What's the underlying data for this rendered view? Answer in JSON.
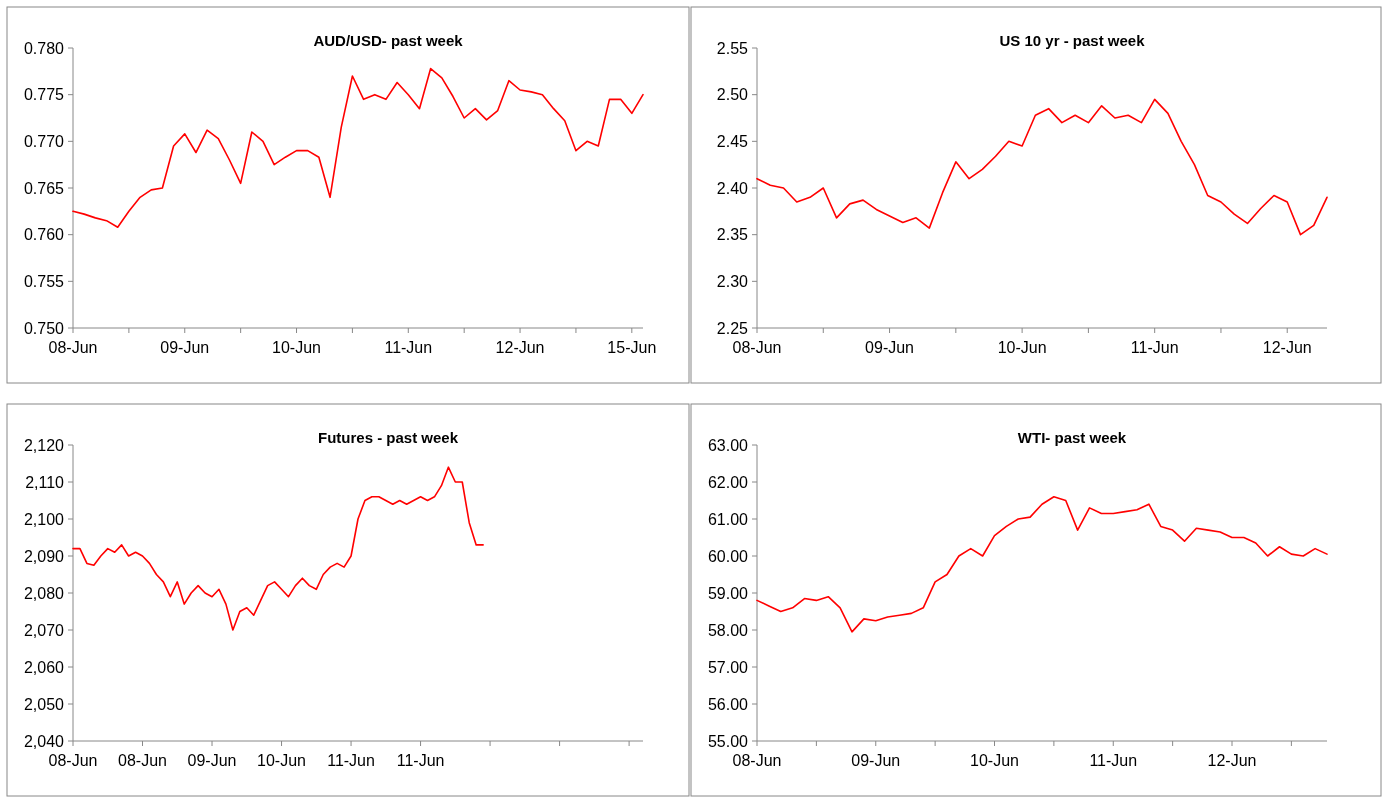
{
  "chart_data": [
    {
      "type": "line",
      "title": "AUD/USD- past week",
      "ylim": [
        0.75,
        0.78
      ],
      "yticks": [
        {
          "value": 0.75,
          "label": "0.750"
        },
        0.755,
        {
          "value": 0.76,
          "label": "0.760"
        },
        0.765,
        {
          "value": 0.77,
          "label": "0.770"
        },
        0.775,
        {
          "value": 0.78,
          "label": "0.780"
        }
      ],
      "categories": [
        "08-Jun",
        null,
        null,
        null,
        null,
        null,
        null,
        null,
        null,
        null,
        "09-Jun",
        null,
        null,
        null,
        null,
        null,
        null,
        null,
        null,
        null,
        "10-Jun",
        null,
        null,
        null,
        null,
        null,
        null,
        null,
        null,
        null,
        "11-Jun",
        null,
        null,
        null,
        null,
        null,
        null,
        null,
        null,
        null,
        "12-Jun",
        null,
        null,
        null,
        null,
        null,
        null,
        null,
        null,
        null,
        "15-Jun",
        null
      ],
      "series": [
        {
          "color": "#ff0000",
          "values": [
            0.7625,
            0.7622,
            0.7618,
            0.7615,
            0.7608,
            0.7625,
            0.764,
            0.7648,
            0.765,
            0.7695,
            0.7708,
            0.7688,
            0.7712,
            0.7703,
            0.768,
            0.7655,
            0.771,
            0.77,
            0.7675,
            0.7683,
            0.769,
            0.769,
            0.7683,
            0.764,
            0.7715,
            0.777,
            0.7745,
            0.775,
            0.7745,
            0.7763,
            0.775,
            0.7735,
            0.7778,
            0.7768,
            0.7748,
            0.7725,
            0.7735,
            0.7723,
            0.7733,
            0.7765,
            0.7755,
            0.7753,
            0.775,
            0.7735,
            0.7722,
            0.769,
            0.77,
            0.7695,
            0.7745,
            0.7745,
            0.773,
            0.775
          ]
        }
      ]
    },
    {
      "type": "line",
      "title": "US 10 yr - past week",
      "ylim": [
        2.25,
        2.55
      ],
      "yticks": [
        2.25,
        {
          "value": 2.3,
          "label": "2.30"
        },
        2.35,
        {
          "value": 2.4,
          "label": "2.40"
        },
        2.45,
        {
          "value": 2.5,
          "label": "2.50"
        },
        2.55
      ],
      "categories": [
        "08-Jun",
        null,
        null,
        null,
        null,
        null,
        null,
        null,
        null,
        null,
        "09-Jun",
        null,
        null,
        null,
        null,
        null,
        null,
        null,
        null,
        null,
        "10-Jun",
        null,
        null,
        null,
        null,
        null,
        null,
        null,
        null,
        null,
        "11-Jun",
        null,
        null,
        null,
        null,
        null,
        null,
        null,
        null,
        null,
        "12-Jun",
        null,
        null,
        null
      ],
      "series": [
        {
          "color": "#ff0000",
          "values": [
            2.41,
            2.403,
            2.4,
            2.385,
            2.39,
            2.4,
            2.368,
            2.383,
            2.387,
            2.377,
            2.37,
            2.363,
            2.368,
            2.357,
            2.395,
            2.428,
            2.41,
            2.42,
            2.434,
            2.45,
            2.445,
            2.478,
            2.485,
            2.47,
            2.478,
            2.47,
            2.488,
            2.475,
            2.478,
            2.47,
            2.495,
            2.48,
            2.45,
            2.425,
            2.392,
            2.385,
            2.372,
            2.362,
            2.378,
            2.392,
            2.385,
            2.35,
            2.36,
            2.39
          ]
        }
      ]
    },
    {
      "type": "line",
      "title": "Futures - past week",
      "ylim": [
        2040,
        2120
      ],
      "yticks": [
        {
          "value": 2040,
          "label": "2,040"
        },
        {
          "value": 2050,
          "label": "2,050"
        },
        {
          "value": 2060,
          "label": "2,060"
        },
        {
          "value": 2070,
          "label": "2,070"
        },
        {
          "value": 2080,
          "label": "2,080"
        },
        {
          "value": 2090,
          "label": "2,090"
        },
        {
          "value": 2100,
          "label": "2,100"
        },
        {
          "value": 2110,
          "label": "2,110"
        },
        {
          "value": 2120,
          "label": "2,120"
        }
      ],
      "categories": [
        "08-Jun",
        null,
        null,
        null,
        null,
        null,
        null,
        null,
        null,
        null,
        "08-Jun",
        null,
        null,
        null,
        null,
        null,
        null,
        null,
        null,
        null,
        "09-Jun",
        null,
        null,
        null,
        null,
        null,
        null,
        null,
        null,
        null,
        "10-Jun",
        null,
        null,
        null,
        null,
        null,
        null,
        null,
        null,
        null,
        "11-Jun",
        null,
        null,
        null,
        null,
        null,
        null,
        null,
        null,
        null,
        "11-Jun",
        null,
        null,
        null,
        null,
        null,
        null,
        null,
        null,
        null,
        null,
        null,
        null,
        null,
        null,
        null,
        null,
        null,
        null,
        null,
        null,
        null,
        null,
        null,
        null,
        null,
        null,
        null,
        null,
        null,
        null,
        null,
        null
      ],
      "series": [
        {
          "color": "#ff0000",
          "values": [
            2092,
            2092,
            2088,
            2087.5,
            2090,
            2092,
            2091,
            2093,
            2090,
            2091,
            2090,
            2088,
            2085,
            2083,
            2079,
            2083,
            2077,
            2080,
            2082,
            2080,
            2079,
            2081,
            2077,
            2070,
            2075,
            2076,
            2074,
            2078,
            2082,
            2083,
            2081,
            2079,
            2082,
            2084,
            2082,
            2081,
            2085,
            2087,
            2088,
            2087,
            2090,
            2100,
            2105,
            2106,
            2106,
            2105,
            2104,
            2105,
            2104,
            2105,
            2106,
            2105,
            2106,
            2109,
            2114,
            2110,
            2110,
            2099,
            2093,
            2093,
            null,
            null,
            null,
            null,
            null,
            null,
            null,
            null,
            null,
            null,
            null,
            null,
            null,
            null,
            null,
            null,
            null,
            null,
            null,
            null,
            null,
            null,
            null
          ]
        }
      ]
    },
    {
      "type": "line",
      "title": "WTI- past week",
      "ylim": [
        55,
        63
      ],
      "yticks": [
        {
          "value": 55,
          "label": "55.00"
        },
        {
          "value": 56,
          "label": "56.00"
        },
        {
          "value": 57,
          "label": "57.00"
        },
        {
          "value": 58,
          "label": "58.00"
        },
        {
          "value": 59,
          "label": "59.00"
        },
        {
          "value": 60,
          "label": "60.00"
        },
        {
          "value": 61,
          "label": "61.00"
        },
        {
          "value": 62,
          "label": "62.00"
        },
        {
          "value": 63,
          "label": "63.00"
        }
      ],
      "categories": [
        "08-Jun",
        null,
        null,
        null,
        null,
        null,
        null,
        null,
        null,
        null,
        "09-Jun",
        null,
        null,
        null,
        null,
        null,
        null,
        null,
        null,
        null,
        "10-Jun",
        null,
        null,
        null,
        null,
        null,
        null,
        null,
        null,
        null,
        "11-Jun",
        null,
        null,
        null,
        null,
        null,
        null,
        null,
        null,
        null,
        "12-Jun",
        null,
        null,
        null,
        null,
        null,
        null,
        null,
        null
      ],
      "series": [
        {
          "color": "#ff0000",
          "values": [
            58.8,
            58.65,
            58.5,
            58.6,
            58.85,
            58.8,
            58.9,
            58.6,
            57.95,
            58.3,
            58.25,
            58.35,
            58.4,
            58.45,
            58.6,
            59.3,
            59.5,
            60.0,
            60.2,
            60.0,
            60.55,
            60.8,
            61.0,
            61.05,
            61.4,
            61.6,
            61.5,
            60.7,
            61.3,
            61.15,
            61.15,
            61.2,
            61.25,
            61.4,
            60.8,
            60.7,
            60.4,
            60.75,
            60.7,
            60.65,
            60.5,
            60.5,
            60.35,
            60.0,
            60.25,
            60.05,
            60.0,
            60.2,
            60.05
          ]
        }
      ]
    }
  ]
}
